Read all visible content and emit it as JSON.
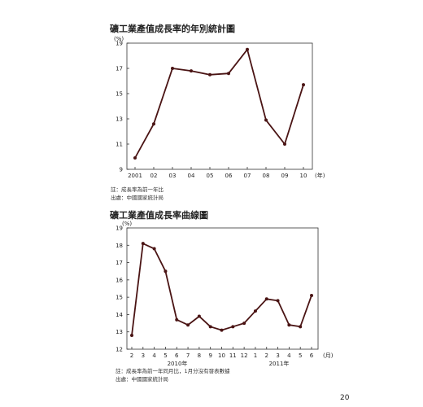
{
  "chart_data": [
    {
      "type": "line",
      "title": "礦工業產值成長率的年別統計圖",
      "ylabel": "(%)",
      "xlabel": "(年)",
      "ylim": [
        9,
        19
      ],
      "yticks": [
        9,
        11,
        13,
        15,
        17,
        19
      ],
      "categories": [
        "2001",
        "02",
        "03",
        "04",
        "05",
        "06",
        "07",
        "08",
        "09",
        "10"
      ],
      "values": [
        9.9,
        12.6,
        17.0,
        16.8,
        16.5,
        16.6,
        18.5,
        12.9,
        11.0,
        15.7
      ],
      "notes": [
        "註：成長率為前一年比",
        "出處：中國國家統計局"
      ],
      "grid": false
    },
    {
      "type": "line",
      "title": "礦工業產值成長率曲線圖",
      "ylabel": "(%)",
      "xlabel": "(月)",
      "ylim": [
        12,
        19
      ],
      "yticks": [
        12,
        13,
        14,
        15,
        16,
        17,
        18,
        19
      ],
      "categories": [
        "2",
        "3",
        "4",
        "5",
        "6",
        "7",
        "8",
        "9",
        "10",
        "11",
        "12",
        "1",
        "2",
        "3",
        "4",
        "5",
        "6"
      ],
      "year_labels": [
        "2010年",
        "2011年"
      ],
      "values": [
        12.8,
        18.1,
        17.8,
        16.5,
        13.7,
        13.4,
        13.9,
        13.3,
        13.1,
        13.3,
        13.5,
        14.2,
        14.9,
        14.8,
        13.4,
        13.3,
        15.1
      ],
      "notes": [
        "註：成長率為前一年同月比，1月分沒有發表數據",
        "出處：中國國家統計局"
      ],
      "grid": false
    }
  ],
  "page_number": "20"
}
